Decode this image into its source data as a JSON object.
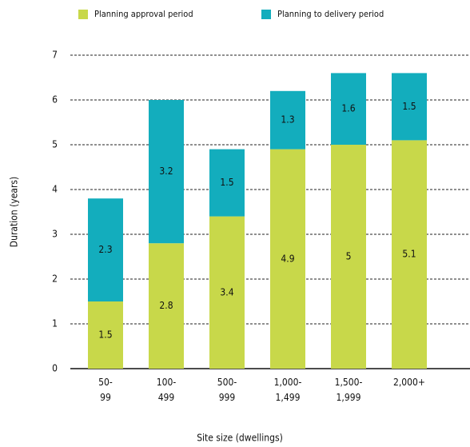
{
  "chart_data": {
    "type": "stacked_bar",
    "x_label": "Site size (dwellings)",
    "y_label": "Duration (years)",
    "categories": [
      "50-\n99",
      "100-\n499",
      "500-\n999",
      "1,000-\n1,499",
      "1,500-\n1,999",
      "2,000+"
    ],
    "series": [
      {
        "name": "Planning approval period",
        "color": "#c8d84a",
        "values": [
          1.5,
          2.8,
          3.4,
          4.9,
          5,
          5.1
        ]
      },
      {
        "name": "Planning to delivery period",
        "color": "#13adbd",
        "values": [
          2.3,
          3.2,
          1.5,
          1.3,
          1.6,
          1.5
        ]
      }
    ],
    "ylim": [
      0,
      7
    ],
    "yticks": [
      0,
      1,
      2,
      3,
      4,
      5,
      6,
      7
    ],
    "grid": true,
    "legend": "top"
  }
}
